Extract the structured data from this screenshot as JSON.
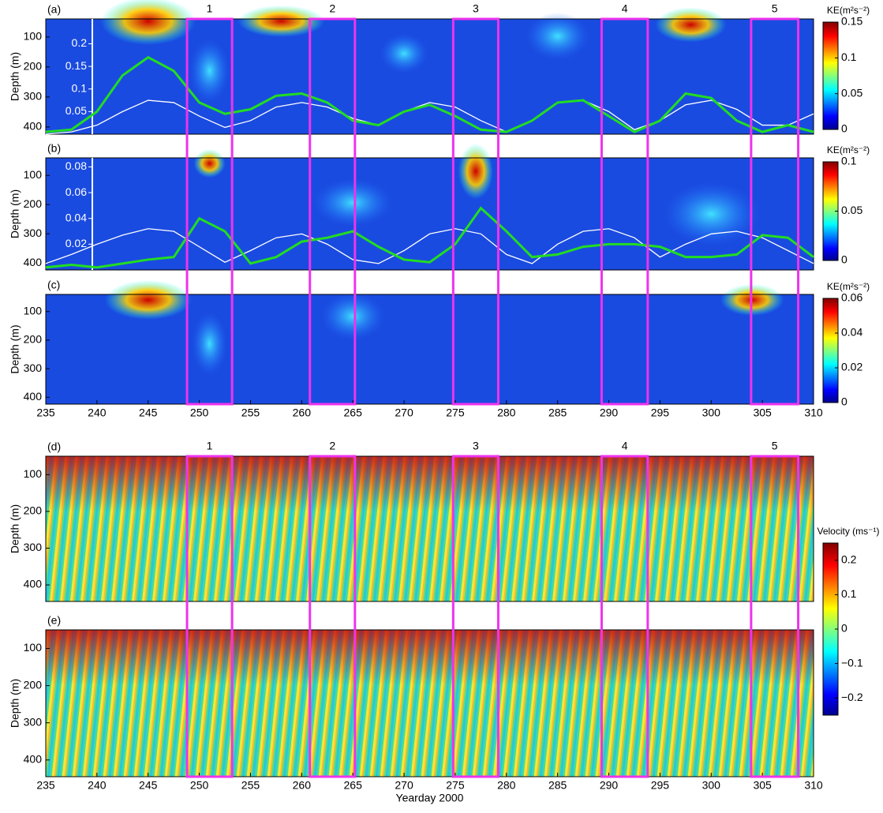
{
  "chart_data": [
    {
      "type": "heatmap",
      "label": "(a)",
      "ylabel": "Depth (m)",
      "xlim": [
        235,
        310
      ],
      "ylim": [
        40,
        424
      ],
      "yticks": [
        100,
        200,
        300,
        400
      ],
      "colorbar": {
        "label": "KE(m²s⁻²)",
        "clim": [
          0,
          0.15
        ],
        "ticks": [
          0,
          0.05,
          0.1,
          0.15
        ]
      },
      "y2lim": [
        0,
        0.255
      ],
      "y2ticks": [
        0.05,
        0.1,
        0.15,
        0.2
      ],
      "x": [
        235,
        237.5,
        240,
        242.5,
        245,
        247.5,
        250,
        252.5,
        255,
        257.5,
        260,
        262.5,
        265,
        267.5,
        270,
        272.5,
        275,
        277.5,
        280,
        282.5,
        285,
        287.5,
        290,
        292.5,
        295,
        297.5,
        300,
        302.5,
        305,
        307.5,
        310
      ],
      "series": [
        {
          "color": "#ffffff",
          "axis": "y2",
          "values": [
            0.0,
            0.005,
            0.02,
            0.05,
            0.075,
            0.07,
            0.04,
            0.015,
            0.03,
            0.06,
            0.07,
            0.06,
            0.035,
            0.02,
            0.05,
            0.07,
            0.06,
            0.03,
            0.005,
            0.03,
            0.07,
            0.075,
            0.05,
            0.01,
            0.03,
            0.065,
            0.075,
            0.055,
            0.02,
            0.02,
            0.045
          ]
        },
        {
          "color": "#22dd22",
          "axis": "y2",
          "values": [
            0.005,
            0.01,
            0.05,
            0.13,
            0.17,
            0.14,
            0.07,
            0.045,
            0.055,
            0.085,
            0.09,
            0.07,
            0.03,
            0.02,
            0.05,
            0.065,
            0.04,
            0.01,
            0.005,
            0.03,
            0.07,
            0.075,
            0.04,
            0.005,
            0.03,
            0.09,
            0.08,
            0.03,
            0.005,
            0.02,
            0.005
          ]
        }
      ]
    },
    {
      "type": "heatmap",
      "label": "(b)",
      "ylabel": "Depth (m)",
      "xlim": [
        235,
        310
      ],
      "ylim": [
        40,
        424
      ],
      "yticks": [
        100,
        200,
        300,
        400
      ],
      "colorbar": {
        "label": "KE(m²s⁻²)",
        "clim": [
          0,
          0.1
        ],
        "ticks": [
          0,
          0.05,
          0.1
        ]
      },
      "y2lim": [
        0,
        0.087
      ],
      "y2ticks": [
        0.02,
        0.04,
        0.06,
        0.08
      ],
      "x": [
        235,
        237.5,
        240,
        242.5,
        245,
        247.5,
        250,
        252.5,
        255,
        257.5,
        260,
        262.5,
        265,
        267.5,
        270,
        272.5,
        275,
        277.5,
        280,
        282.5,
        285,
        287.5,
        290,
        292.5,
        295,
        297.5,
        300,
        302.5,
        305,
        307.5,
        310
      ],
      "series": [
        {
          "color": "#ffffff",
          "axis": "y2",
          "values": [
            0.005,
            0.012,
            0.02,
            0.027,
            0.032,
            0.03,
            0.018,
            0.006,
            0.015,
            0.025,
            0.028,
            0.02,
            0.008,
            0.005,
            0.015,
            0.028,
            0.032,
            0.028,
            0.012,
            0.005,
            0.02,
            0.03,
            0.032,
            0.025,
            0.01,
            0.02,
            0.028,
            0.03,
            0.025,
            0.015,
            0.005
          ]
        },
        {
          "color": "#22dd22",
          "axis": "y2",
          "values": [
            0.002,
            0.004,
            0.002,
            0.005,
            0.008,
            0.01,
            0.04,
            0.03,
            0.005,
            0.01,
            0.022,
            0.025,
            0.03,
            0.018,
            0.008,
            0.006,
            0.02,
            0.048,
            0.03,
            0.01,
            0.012,
            0.018,
            0.02,
            0.02,
            0.018,
            0.01,
            0.01,
            0.012,
            0.027,
            0.025,
            0.01
          ]
        }
      ]
    },
    {
      "type": "heatmap",
      "label": "(c)",
      "ylabel": "Depth (m)",
      "xlim": [
        235,
        310
      ],
      "ylim": [
        40,
        424
      ],
      "yticks": [
        100,
        200,
        300,
        400
      ],
      "xticks": [
        235,
        240,
        245,
        250,
        255,
        260,
        265,
        270,
        275,
        280,
        285,
        290,
        295,
        300,
        305,
        310
      ],
      "colorbar": {
        "label": "KE(m²s⁻²)",
        "clim": [
          0,
          0.06
        ],
        "ticks": [
          0,
          0.02,
          0.04,
          0.06
        ]
      }
    },
    {
      "type": "stripes",
      "label": "(d)",
      "ylabel": "Depth (m)",
      "xlim": [
        235,
        310
      ],
      "ylim": [
        50,
        445
      ],
      "yticks": [
        100,
        200,
        300,
        400
      ],
      "colorbar": {
        "label": "Velocity (ms⁻¹)",
        "clim": [
          -0.25,
          0.25
        ],
        "ticks": [
          {
            "value": -0.2,
            "label": "−0.2"
          },
          {
            "value": -0.1,
            "label": "−0.1"
          },
          0,
          0.1,
          0.2
        ]
      }
    },
    {
      "type": "stripes",
      "label": "(e)",
      "ylabel": "Depth (m)",
      "xlim": [
        235,
        310
      ],
      "ylim": [
        50,
        445
      ],
      "yticks": [
        100,
        200,
        300,
        400
      ],
      "xticks": [
        235,
        240,
        245,
        250,
        255,
        260,
        265,
        270,
        275,
        280,
        285,
        290,
        295,
        300,
        305,
        310
      ],
      "xlabel": "Yearday 2000"
    }
  ],
  "events": [
    {
      "label": "1",
      "x": [
        248.8,
        253.2
      ]
    },
    {
      "label": "2",
      "x": [
        260.8,
        265.2
      ]
    },
    {
      "label": "3",
      "x": [
        274.8,
        279.2
      ]
    },
    {
      "label": "4",
      "x": [
        289.3,
        293.8
      ]
    },
    {
      "label": "5",
      "x": [
        303.9,
        308.5
      ]
    }
  ]
}
